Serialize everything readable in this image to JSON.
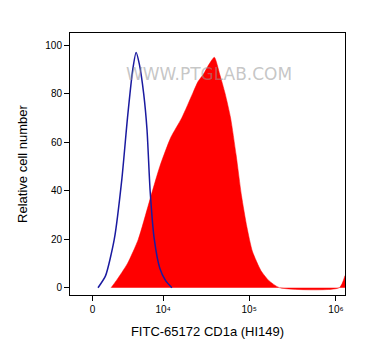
{
  "chart_data": {
    "type": "line",
    "x_label": "FITC-65172 CD1a (HI149)",
    "y_label": "Relative cell number",
    "series": [
      {
        "type": "area",
        "color": "#ff0000",
        "x": [
          1605,
          2130,
          3350,
          4830,
          6680,
          9100,
          12350,
          16600,
          22200,
          25700,
          29700,
          34300,
          39700,
          45800,
          52900,
          61100,
          70600,
          81600,
          94200,
          109000,
          137000,
          168000,
          224000,
          1090000,
          1270000
        ],
        "values": [
          0,
          3,
          10,
          20,
          35,
          50,
          62,
          70,
          80,
          85,
          88,
          92,
          95,
          88,
          80,
          70,
          55,
          38,
          25,
          15,
          7,
          3,
          0,
          0,
          5
        ]
      },
      {
        "type": "line",
        "color": "#1a1aa0",
        "x": [
          455,
          1110,
          1915,
          2705,
          3350,
          4030,
          4500,
          5000,
          5700,
          6300,
          6900,
          7780,
          9100,
          10650,
          12700
        ],
        "values": [
          0,
          5,
          20,
          45,
          70,
          90,
          97,
          92,
          80,
          65,
          40,
          20,
          8,
          3,
          0
        ]
      }
    ],
    "xlim": [
      -2000,
      1270000
    ],
    "xticks": [
      0,
      {
        "value": 10000,
        "label": "10⁴"
      },
      {
        "value": 100000,
        "label": "10⁵"
      },
      {
        "value": 1000000,
        "label": "10⁶"
      }
    ],
    "ylim": [
      -3,
      105
    ],
    "yticks": [
      0,
      20,
      40,
      60,
      80,
      100
    ],
    "grid": false,
    "annotations": [
      {
        "text": "WWW.PTGLAB.COM",
        "x": 34000,
        "y": 88
      }
    ]
  }
}
